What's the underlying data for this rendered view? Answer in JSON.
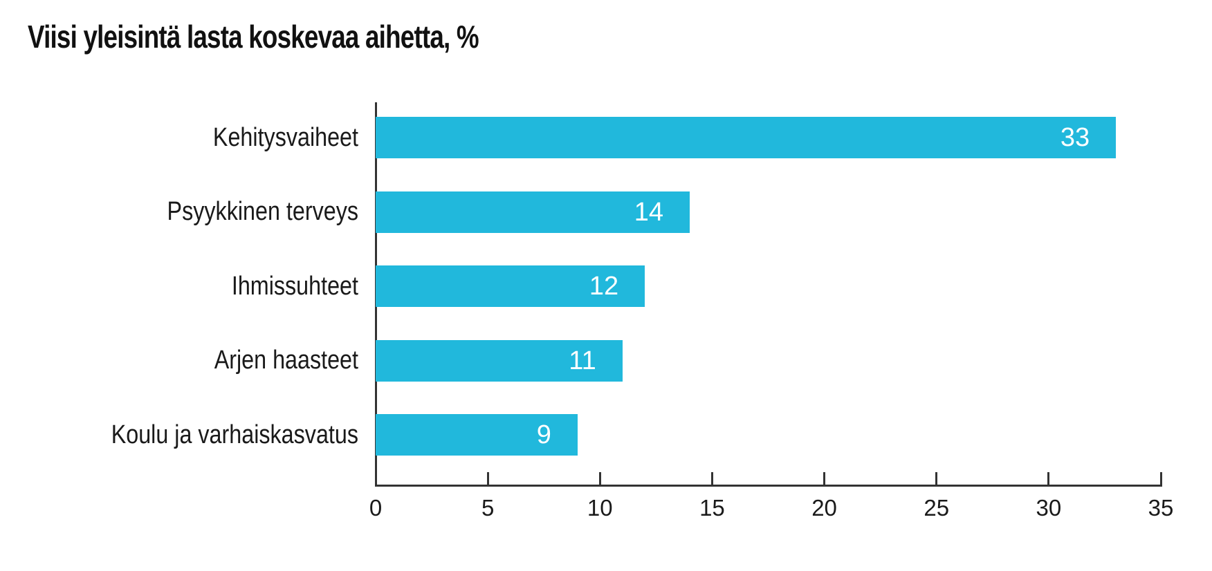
{
  "title": "Viisi yleisintä lasta koskevaa aihetta, %",
  "chart_data": {
    "type": "bar",
    "orientation": "horizontal",
    "title": "Viisi yleisintä lasta koskevaa aihetta, %",
    "categories": [
      "Kehitysvaiheet",
      "Psyykkinen terveys",
      "Ihmissuhteet",
      "Arjen haasteet",
      "Koulu ja varhaiskasvatus"
    ],
    "values": [
      33,
      14,
      12,
      11,
      9
    ],
    "value_labels": [
      "33",
      "14",
      "12",
      "11",
      "9"
    ],
    "xlim": [
      0,
      35
    ],
    "x_ticks": [
      "0",
      "5",
      "10",
      "15",
      "20",
      "25",
      "30",
      "35"
    ],
    "xlabel": "",
    "ylabel": "",
    "grid": false,
    "legend_position": "none",
    "colors": {
      "bar_fill": "#21B8DC",
      "value_label": "#FFFFFF",
      "axis_line": "#333333",
      "text": "#1A1A1A"
    }
  }
}
